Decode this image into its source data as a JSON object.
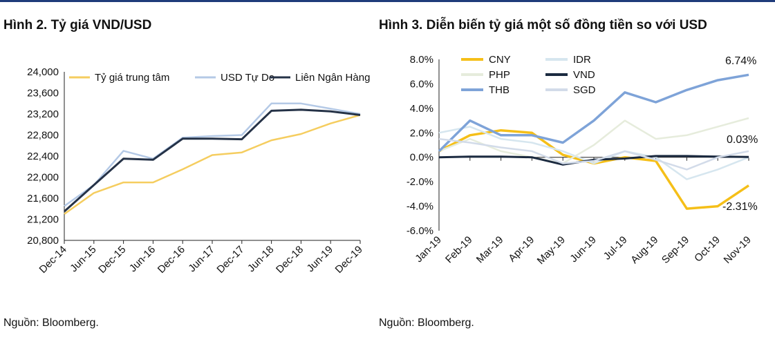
{
  "left_panel": {
    "title": "Hình 2. Tỷ giá VND/USD",
    "source": "Nguồn: Bloomberg."
  },
  "right_panel": {
    "title": "Hình 3. Diễn biến tỷ giá một số đồng tiền so với USD",
    "source": "Nguồn: Bloomberg."
  },
  "chart_data": [
    {
      "type": "line",
      "title": "Hình 2. Tỷ giá VND/USD",
      "xlabel": "",
      "ylabel": "",
      "x": [
        "Dec-14",
        "Jun-15",
        "Dec-15",
        "Jun-16",
        "Dec-16",
        "Jun-17",
        "Dec-17",
        "Jun-18",
        "Dec-18",
        "Jun-19",
        "Dec-19"
      ],
      "ylim": [
        20800,
        24000
      ],
      "yticks": [
        "24,000",
        "23,600",
        "23,200",
        "22,800",
        "22,400",
        "22,000",
        "21,600",
        "21,200",
        "20,800"
      ],
      "legend": "top",
      "series": [
        {
          "name": "Tỷ giá trung tâm",
          "color": "#f5cd5f",
          "values": [
            21300,
            21700,
            21900,
            21900,
            22150,
            22420,
            22470,
            22700,
            22820,
            23020,
            23180
          ]
        },
        {
          "name": "USD Tự Do",
          "color": "#b4c9e6",
          "values": [
            21450,
            21850,
            22500,
            22350,
            22750,
            22780,
            22800,
            23400,
            23400,
            23300,
            23200
          ]
        },
        {
          "name": "Liên Ngân Hàng",
          "color": "#253247",
          "values": [
            21350,
            21850,
            22350,
            22330,
            22730,
            22730,
            22720,
            23260,
            23280,
            23250,
            23180
          ]
        }
      ]
    },
    {
      "type": "line",
      "title": "Hình 3. Diễn biến tỷ giá một số đồng tiền so với USD",
      "xlabel": "",
      "ylabel": "",
      "x": [
        "Jan-19",
        "Feb-19",
        "Mar-19",
        "Apr-19",
        "May-19",
        "Jun-19",
        "Jul-19",
        "Aug-19",
        "Sep-19",
        "Oct-19",
        "Nov-19"
      ],
      "ylim": [
        -6,
        8
      ],
      "yticks": [
        "8.0%",
        "6.0%",
        "4.0%",
        "2.0%",
        "0.0%",
        "-2.0%",
        "-4.0%",
        "-6.0%"
      ],
      "legend": "top-left",
      "annotations": [
        "6.74%",
        "0.03%",
        "-2.31%"
      ],
      "series": [
        {
          "name": "CNY",
          "color": "#f5bf18",
          "values": [
            0.5,
            1.8,
            2.2,
            2.0,
            0.2,
            -0.5,
            0.0,
            -0.3,
            -4.2,
            -4.0,
            -2.31
          ]
        },
        {
          "name": "IDR",
          "color": "#d6e6ef",
          "values": [
            2.0,
            2.5,
            1.5,
            1.2,
            0.5,
            -0.5,
            0.5,
            0.0,
            -1.8,
            -1.0,
            0.0
          ]
        },
        {
          "name": "PHP",
          "color": "#e6ecdc",
          "values": [
            0.5,
            1.5,
            0.5,
            0.0,
            -0.5,
            1.0,
            3.0,
            1.5,
            1.8,
            2.5,
            3.2
          ]
        },
        {
          "name": "VND",
          "color": "#1b2a40",
          "values": [
            0.0,
            0.05,
            0.05,
            0.0,
            -0.6,
            -0.2,
            -0.1,
            0.1,
            0.1,
            0.05,
            0.03
          ]
        },
        {
          "name": "THB",
          "color": "#7ea3d8",
          "values": [
            0.5,
            3.0,
            1.8,
            1.8,
            1.2,
            3.0,
            5.3,
            4.5,
            5.5,
            6.3,
            6.74
          ]
        },
        {
          "name": "SGD",
          "color": "#d2dbe9",
          "values": [
            1.5,
            1.2,
            0.8,
            0.5,
            -0.5,
            -0.3,
            0.5,
            -0.2,
            -1.0,
            0.0,
            0.5
          ]
        }
      ]
    }
  ]
}
